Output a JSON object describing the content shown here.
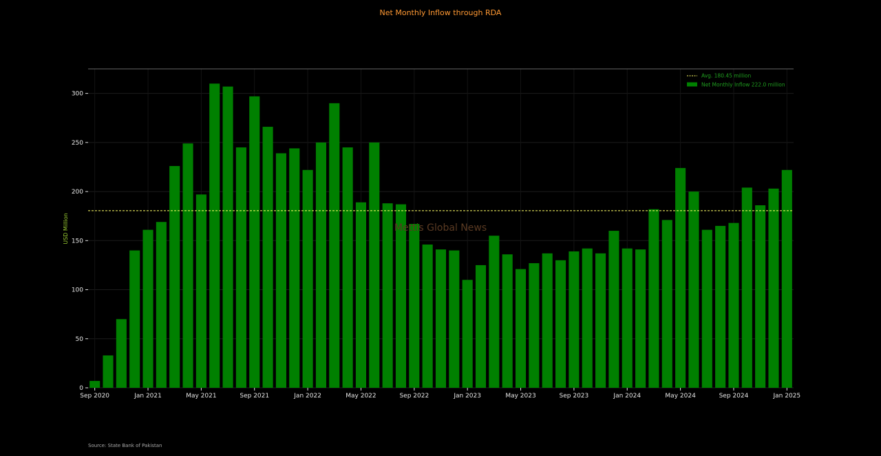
{
  "chart_data": {
    "type": "bar",
    "title": "Net Monthly Inflow through RDA",
    "ylabel": "USD Million",
    "xlabel": "",
    "ylim": [
      0,
      325
    ],
    "yticks": [
      0,
      50,
      100,
      150,
      200,
      250,
      300
    ],
    "grid": true,
    "legend_position": "top-right",
    "categories": [
      "Sep 2020",
      "Oct 2020",
      "Nov 2020",
      "Dec 2020",
      "Jan 2021",
      "Feb 2021",
      "Mar 2021",
      "Apr 2021",
      "May 2021",
      "Jun 2021",
      "Jul 2021",
      "Aug 2021",
      "Sep 2021",
      "Oct 2021",
      "Nov 2021",
      "Dec 2021",
      "Jan 2022",
      "Feb 2022",
      "Mar 2022",
      "Apr 2022",
      "May 2022",
      "Jun 2022",
      "Jul 2022",
      "Aug 2022",
      "Sep 2022",
      "Oct 2022",
      "Nov 2022",
      "Dec 2022",
      "Jan 2023",
      "Feb 2023",
      "Mar 2023",
      "Apr 2023",
      "May 2023",
      "Jun 2023",
      "Jul 2023",
      "Aug 2023",
      "Sep 2023",
      "Oct 2023",
      "Nov 2023",
      "Dec 2023",
      "Jan 2024",
      "Feb 2024",
      "Mar 2024",
      "Apr 2024",
      "May 2024",
      "Jun 2024",
      "Jul 2024",
      "Aug 2024",
      "Sep 2024",
      "Oct 2024",
      "Nov 2024",
      "Dec 2024",
      "Jan 2025"
    ],
    "x_tick_labels": [
      "Sep 2020",
      "Jan 2021",
      "May 2021",
      "Sep 2021",
      "Jan 2022",
      "May 2022",
      "Sep 2022",
      "Jan 2023",
      "May 2023",
      "Sep 2023",
      "Jan 2024",
      "May 2024",
      "Sep 2024",
      "Jan 2025"
    ],
    "series": [
      {
        "name": "Net Monthly Inflow 222.0 million",
        "values": [
          7,
          33,
          70,
          140,
          161,
          169,
          226,
          249,
          197,
          310,
          307,
          245,
          297,
          266,
          239,
          244,
          222,
          250,
          290,
          245,
          189,
          250,
          188,
          187,
          167,
          146,
          141,
          140,
          110,
          125,
          155,
          136,
          121,
          127,
          137,
          130,
          139,
          142,
          137,
          160,
          142,
          141,
          182,
          171,
          224,
          200,
          161,
          165,
          168,
          204,
          186,
          203,
          222
        ]
      }
    ],
    "average": {
      "name": "Avg. 180.45 million",
      "value": 180.45
    },
    "annotations": {
      "watermark": "Mettis Global News",
      "source": "Source: State Bank of Pakistan"
    },
    "colors": {
      "background": "#000000",
      "bar": "#008000",
      "title": "#ff9933",
      "ylabel": "#9acd32",
      "avg_line": "#ffff66",
      "tick": "#e6e6e6",
      "legend_text": "#1f9d1f",
      "watermark": "#5a3a22"
    }
  }
}
